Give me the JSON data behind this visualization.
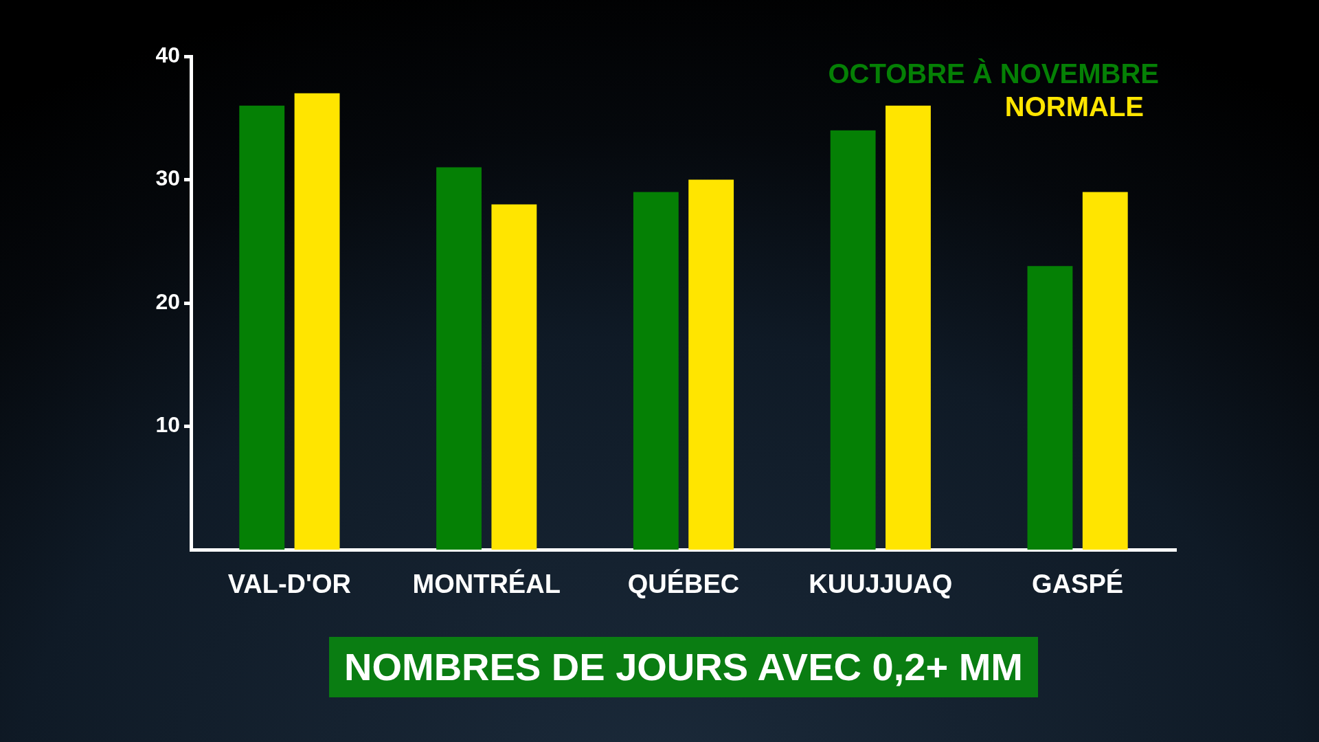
{
  "chart_data": {
    "type": "bar",
    "title": "NOMBRES DE JOURS AVEC 0,2+ MM",
    "categories": [
      "VAL-D'OR",
      "MONTRÉAL",
      "QUÉBEC",
      "KUUJJUAQ",
      "GASPÉ"
    ],
    "series": [
      {
        "name": "OCTOBRE À NOVEMBRE",
        "color": "#058005",
        "values": [
          36,
          31,
          29,
          34,
          23
        ]
      },
      {
        "name": "NORMALE",
        "color": "#ffe500",
        "values": [
          37,
          28,
          30,
          36,
          29
        ]
      }
    ],
    "ylim": [
      0,
      40
    ],
    "yticks": [
      10,
      20,
      30,
      40
    ],
    "legend": "top right"
  }
}
